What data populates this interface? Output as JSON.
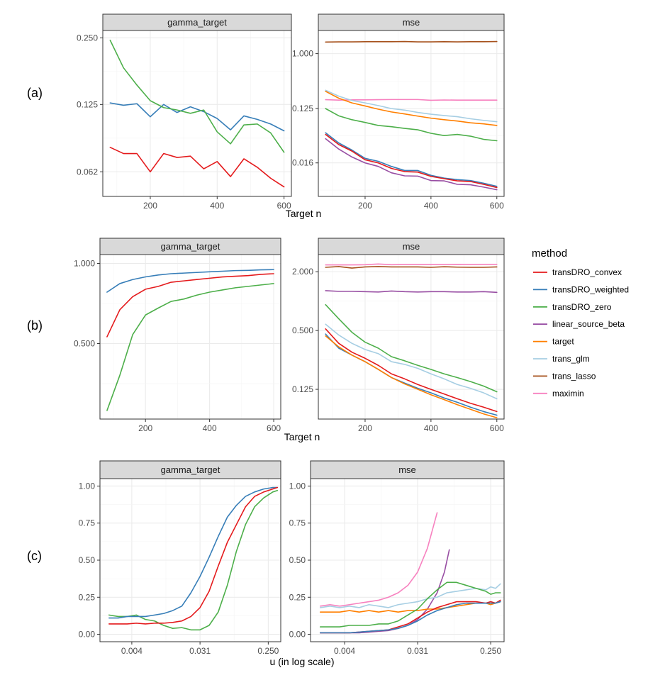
{
  "colors": {
    "transDRO_convex": "#e41a1c",
    "transDRO_weighted": "#377eb8",
    "transDRO_zero": "#4daf4a",
    "linear_source_beta": "#984ea3",
    "target": "#ff7f00",
    "trans_glm": "#a6cee3",
    "trans_lasso": "#a6511c",
    "maximin": "#f781bf"
  },
  "legend": {
    "title": "method",
    "items": [
      "transDRO_convex",
      "transDRO_weighted",
      "transDRO_zero",
      "linear_source_beta",
      "target",
      "trans_glm",
      "trans_lasso",
      "maximin"
    ]
  },
  "chart_data": [
    {
      "type": "line",
      "row_label": "(a)",
      "panel": "gamma_target",
      "y_scale": "log",
      "ylim": [
        0.048,
        0.27
      ],
      "yticks": [
        0.062,
        0.125,
        0.25
      ],
      "ytick_labels": [
        "0.062",
        "0.125",
        "0.250"
      ],
      "xlim": [
        58,
        622
      ],
      "xticks": [
        200,
        400,
        600
      ],
      "xlabel": "Target n",
      "x": [
        80,
        120,
        160,
        200,
        240,
        280,
        320,
        360,
        400,
        440,
        480,
        520,
        560,
        600
      ],
      "series": [
        {
          "name": "transDRO_convex",
          "values": [
            0.08,
            0.075,
            0.075,
            0.062,
            0.075,
            0.072,
            0.073,
            0.064,
            0.069,
            0.059,
            0.071,
            0.065,
            0.058,
            0.053
          ]
        },
        {
          "name": "transDRO_weighted",
          "values": [
            0.127,
            0.124,
            0.126,
            0.11,
            0.125,
            0.115,
            0.122,
            0.116,
            0.108,
            0.096,
            0.111,
            0.107,
            0.102,
            0.095
          ]
        },
        {
          "name": "transDRO_zero",
          "values": [
            0.244,
            0.183,
            0.153,
            0.13,
            0.121,
            0.118,
            0.114,
            0.118,
            0.094,
            0.083,
            0.101,
            0.102,
            0.093,
            0.076
          ]
        }
      ]
    },
    {
      "type": "line",
      "row_label": "",
      "panel": "mse",
      "y_scale": "log",
      "ylim": [
        0.0045,
        2.4
      ],
      "yticks": [
        0.016,
        0.125,
        1.0
      ],
      "ytick_labels": [
        "0.016",
        "0.125",
        "1.000"
      ],
      "xlim": [
        58,
        622
      ],
      "xticks": [
        200,
        400,
        600
      ],
      "xlabel": "",
      "x": [
        80,
        120,
        160,
        200,
        240,
        280,
        320,
        360,
        400,
        440,
        480,
        520,
        560,
        600
      ],
      "series": [
        {
          "name": "trans_lasso",
          "values": [
            1.55,
            1.56,
            1.56,
            1.57,
            1.57,
            1.57,
            1.58,
            1.56,
            1.56,
            1.57,
            1.56,
            1.57,
            1.57,
            1.58
          ]
        },
        {
          "name": "maximin",
          "values": [
            0.175,
            0.172,
            0.174,
            0.174,
            0.175,
            0.176,
            0.176,
            0.176,
            0.171,
            0.173,
            0.172,
            0.172,
            0.172,
            0.172
          ]
        },
        {
          "name": "trans_glm",
          "values": [
            0.25,
            0.2,
            0.17,
            0.155,
            0.14,
            0.125,
            0.118,
            0.108,
            0.101,
            0.096,
            0.092,
            0.085,
            0.08,
            0.076
          ]
        },
        {
          "name": "target",
          "values": [
            0.24,
            0.185,
            0.155,
            0.138,
            0.122,
            0.11,
            0.102,
            0.094,
            0.087,
            0.082,
            0.078,
            0.073,
            0.07,
            0.066
          ]
        },
        {
          "name": "transDRO_zero",
          "values": [
            0.125,
            0.095,
            0.082,
            0.074,
            0.066,
            0.063,
            0.059,
            0.056,
            0.049,
            0.045,
            0.047,
            0.044,
            0.039,
            0.037
          ]
        },
        {
          "name": "transDRO_weighted",
          "values": [
            0.05,
            0.034,
            0.026,
            0.019,
            0.017,
            0.014,
            0.012,
            0.012,
            0.01,
            0.009,
            0.0085,
            0.0082,
            0.0074,
            0.0066
          ]
        },
        {
          "name": "transDRO_convex",
          "values": [
            0.047,
            0.032,
            0.025,
            0.018,
            0.016,
            0.013,
            0.0115,
            0.0113,
            0.0096,
            0.0088,
            0.0081,
            0.0079,
            0.0071,
            0.0063
          ]
        },
        {
          "name": "linear_source_beta",
          "values": [
            0.04,
            0.027,
            0.02,
            0.016,
            0.014,
            0.011,
            0.0098,
            0.0097,
            0.0082,
            0.0081,
            0.0071,
            0.007,
            0.0064,
            0.0058
          ]
        }
      ]
    },
    {
      "type": "line",
      "row_label": "(b)",
      "panel": "gamma_target",
      "y_scale": "log",
      "ylim": [
        0.26,
        1.08
      ],
      "yticks": [
        0.5,
        1.0
      ],
      "ytick_labels": [
        "0.500",
        "1.000"
      ],
      "xlim": [
        58,
        622
      ],
      "xticks": [
        200,
        400,
        600
      ],
      "xlabel": "Target n",
      "x": [
        80,
        120,
        160,
        200,
        240,
        280,
        320,
        360,
        400,
        440,
        480,
        520,
        560,
        600
      ],
      "series": [
        {
          "name": "transDRO_weighted",
          "values": [
            0.78,
            0.84,
            0.87,
            0.89,
            0.905,
            0.915,
            0.92,
            0.925,
            0.93,
            0.935,
            0.94,
            0.942,
            0.946,
            0.948
          ]
        },
        {
          "name": "transDRO_convex",
          "values": [
            0.53,
            0.67,
            0.75,
            0.8,
            0.82,
            0.85,
            0.86,
            0.87,
            0.88,
            0.89,
            0.895,
            0.9,
            0.91,
            0.915
          ]
        },
        {
          "name": "transDRO_zero",
          "values": [
            0.28,
            0.38,
            0.54,
            0.64,
            0.68,
            0.72,
            0.735,
            0.76,
            0.78,
            0.795,
            0.81,
            0.82,
            0.83,
            0.84
          ]
        }
      ]
    },
    {
      "type": "line",
      "row_label": "",
      "panel": "mse",
      "y_scale": "log",
      "ylim": [
        0.062,
        3.0
      ],
      "yticks": [
        0.125,
        0.5,
        2.0
      ],
      "ytick_labels": [
        "0.125",
        "0.500",
        "2.000"
      ],
      "xlim": [
        58,
        622
      ],
      "xticks": [
        200,
        400,
        600
      ],
      "xlabel": "",
      "x": [
        80,
        120,
        160,
        200,
        240,
        280,
        320,
        360,
        400,
        440,
        480,
        520,
        560,
        600
      ],
      "series": [
        {
          "name": "maximin",
          "values": [
            2.35,
            2.35,
            2.35,
            2.36,
            2.4,
            2.36,
            2.37,
            2.37,
            2.37,
            2.37,
            2.38,
            2.37,
            2.38,
            2.38
          ]
        },
        {
          "name": "trans_lasso",
          "values": [
            2.22,
            2.26,
            2.18,
            2.24,
            2.26,
            2.24,
            2.24,
            2.24,
            2.22,
            2.25,
            2.23,
            2.22,
            2.22,
            2.24
          ]
        },
        {
          "name": "linear_source_beta",
          "values": [
            1.28,
            1.26,
            1.26,
            1.25,
            1.24,
            1.27,
            1.25,
            1.24,
            1.25,
            1.25,
            1.24,
            1.24,
            1.25,
            1.23
          ]
        },
        {
          "name": "transDRO_zero",
          "values": [
            0.92,
            0.66,
            0.48,
            0.38,
            0.33,
            0.27,
            0.245,
            0.22,
            0.2,
            0.18,
            0.165,
            0.15,
            0.135,
            0.118
          ]
        },
        {
          "name": "trans_glm",
          "values": [
            0.58,
            0.45,
            0.37,
            0.32,
            0.29,
            0.24,
            0.225,
            0.205,
            0.18,
            0.16,
            0.14,
            0.128,
            0.115,
            0.1
          ]
        },
        {
          "name": "transDRO_convex",
          "values": [
            0.52,
            0.37,
            0.3,
            0.26,
            0.22,
            0.18,
            0.16,
            0.14,
            0.125,
            0.112,
            0.1,
            0.09,
            0.082,
            0.074
          ]
        },
        {
          "name": "transDRO_weighted",
          "values": [
            0.46,
            0.33,
            0.28,
            0.24,
            0.2,
            0.165,
            0.145,
            0.128,
            0.115,
            0.102,
            0.092,
            0.082,
            0.074,
            0.068
          ]
        },
        {
          "name": "target",
          "values": [
            0.44,
            0.34,
            0.28,
            0.24,
            0.2,
            0.165,
            0.142,
            0.125,
            0.11,
            0.098,
            0.087,
            0.078,
            0.07,
            0.064
          ]
        }
      ]
    },
    {
      "type": "line",
      "row_label": "(c)",
      "panel": "gamma_target",
      "x_scale": "log",
      "xlim_log2": [
        -9.4,
        -1.45
      ],
      "xtick_log2": [
        -8,
        -5,
        -2
      ],
      "xtick_labels": [
        "0.004",
        "0.031",
        "0.250"
      ],
      "ylim": [
        -0.05,
        1.05
      ],
      "yticks": [
        0.0,
        0.25,
        0.5,
        0.75,
        1.0
      ],
      "ytick_labels": [
        "0.00",
        "0.25",
        "0.50",
        "0.75",
        "1.00"
      ],
      "xlabel": "u (in log scale)",
      "x_log2": [
        -9.0,
        -8.6,
        -8.2,
        -7.8,
        -7.4,
        -7.0,
        -6.6,
        -6.2,
        -5.8,
        -5.4,
        -5.0,
        -4.6,
        -4.2,
        -3.8,
        -3.4,
        -3.0,
        -2.6,
        -2.2,
        -1.8,
        -1.6
      ],
      "series": [
        {
          "name": "transDRO_zero",
          "values": [
            0.13,
            0.12,
            0.12,
            0.13,
            0.1,
            0.09,
            0.06,
            0.04,
            0.045,
            0.03,
            0.03,
            0.06,
            0.15,
            0.33,
            0.56,
            0.74,
            0.86,
            0.92,
            0.96,
            0.97
          ]
        },
        {
          "name": "transDRO_weighted",
          "values": [
            0.11,
            0.11,
            0.12,
            0.12,
            0.12,
            0.13,
            0.14,
            0.16,
            0.19,
            0.28,
            0.39,
            0.52,
            0.66,
            0.79,
            0.87,
            0.93,
            0.96,
            0.98,
            0.99,
            0.99
          ]
        },
        {
          "name": "transDRO_convex",
          "values": [
            0.07,
            0.07,
            0.07,
            0.075,
            0.07,
            0.075,
            0.075,
            0.08,
            0.09,
            0.12,
            0.18,
            0.29,
            0.46,
            0.62,
            0.74,
            0.86,
            0.93,
            0.96,
            0.98,
            0.99
          ]
        }
      ]
    },
    {
      "type": "line",
      "row_label": "",
      "panel": "mse",
      "x_scale": "log",
      "xlim_log2": [
        -9.4,
        -1.45
      ],
      "xtick_log2": [
        -8,
        -5,
        -2
      ],
      "xtick_labels": [
        "0.004",
        "0.031",
        "0.250"
      ],
      "ylim": [
        -0.05,
        1.05
      ],
      "yticks": [
        0.0,
        0.25,
        0.5,
        0.75,
        1.0
      ],
      "ytick_labels": [
        "0.00",
        "0.25",
        "0.50",
        "0.75",
        "1.00"
      ],
      "xlabel": "",
      "series": [
        {
          "name": "maximin",
          "x_log2": [
            -9.0,
            -8.6,
            -8.2,
            -7.8,
            -7.4,
            -7.0,
            -6.6,
            -6.2,
            -5.8,
            -5.4,
            -5.0,
            -4.8,
            -4.6,
            -4.4,
            -4.2
          ],
          "values": [
            0.19,
            0.2,
            0.19,
            0.2,
            0.21,
            0.22,
            0.23,
            0.25,
            0.28,
            0.33,
            0.42,
            0.5,
            0.58,
            0.7,
            0.82
          ]
        },
        {
          "name": "linear_source_beta",
          "x_log2": [
            -9.0,
            -8.6,
            -8.2,
            -7.8,
            -7.4,
            -7.0,
            -6.6,
            -6.2,
            -5.8,
            -5.4,
            -5.0,
            -4.6,
            -4.2,
            -3.9,
            -3.7
          ],
          "values": [
            0.01,
            0.01,
            0.01,
            0.01,
            0.01,
            0.015,
            0.02,
            0.025,
            0.04,
            0.06,
            0.1,
            0.17,
            0.28,
            0.42,
            0.57
          ]
        },
        {
          "name": "trans_glm",
          "x_log2": [
            -9.0,
            -8.6,
            -8.2,
            -7.8,
            -7.4,
            -7.0,
            -6.6,
            -6.2,
            -5.8,
            -5.4,
            -5.0,
            -4.6,
            -4.2,
            -3.8,
            -3.4,
            -3.0,
            -2.6,
            -2.2,
            -2.0,
            -1.8,
            -1.6
          ],
          "values": [
            0.18,
            0.19,
            0.18,
            0.19,
            0.18,
            0.2,
            0.19,
            0.18,
            0.2,
            0.21,
            0.22,
            0.24,
            0.25,
            0.28,
            0.29,
            0.3,
            0.31,
            0.3,
            0.32,
            0.31,
            0.34
          ]
        },
        {
          "name": "target",
          "x_log2": [
            -9.0,
            -8.6,
            -8.2,
            -7.8,
            -7.4,
            -7.0,
            -6.6,
            -6.2,
            -5.8,
            -5.4,
            -5.0,
            -4.6,
            -4.2,
            -3.8,
            -3.4,
            -3.0,
            -2.6,
            -2.2,
            -2.0,
            -1.8,
            -1.6
          ],
          "values": [
            0.15,
            0.15,
            0.15,
            0.16,
            0.15,
            0.16,
            0.15,
            0.16,
            0.15,
            0.16,
            0.16,
            0.17,
            0.17,
            0.18,
            0.19,
            0.2,
            0.21,
            0.21,
            0.2,
            0.21,
            0.22
          ]
        },
        {
          "name": "transDRO_zero",
          "x_log2": [
            -9.0,
            -8.6,
            -8.2,
            -7.8,
            -7.4,
            -7.0,
            -6.6,
            -6.2,
            -5.8,
            -5.4,
            -5.0,
            -4.6,
            -4.2,
            -3.8,
            -3.4,
            -3.0,
            -2.6,
            -2.2,
            -2.0,
            -1.8,
            -1.6
          ],
          "values": [
            0.05,
            0.05,
            0.05,
            0.06,
            0.06,
            0.06,
            0.07,
            0.07,
            0.09,
            0.13,
            0.17,
            0.24,
            0.3,
            0.35,
            0.35,
            0.33,
            0.31,
            0.29,
            0.27,
            0.28,
            0.28
          ]
        },
        {
          "name": "transDRO_convex",
          "x_log2": [
            -9.0,
            -8.6,
            -8.2,
            -7.8,
            -7.4,
            -7.0,
            -6.6,
            -6.2,
            -5.8,
            -5.4,
            -5.0,
            -4.6,
            -4.2,
            -3.8,
            -3.4,
            -3.0,
            -2.6,
            -2.2,
            -2.0,
            -1.8,
            -1.6
          ],
          "values": [
            0.01,
            0.01,
            0.01,
            0.01,
            0.015,
            0.02,
            0.025,
            0.03,
            0.05,
            0.07,
            0.11,
            0.15,
            0.18,
            0.2,
            0.22,
            0.22,
            0.22,
            0.21,
            0.22,
            0.21,
            0.23
          ]
        },
        {
          "name": "transDRO_weighted",
          "x_log2": [
            -9.0,
            -8.6,
            -8.2,
            -7.8,
            -7.4,
            -7.0,
            -6.6,
            -6.2,
            -5.8,
            -5.4,
            -5.0,
            -4.6,
            -4.2,
            -3.8,
            -3.4,
            -3.0,
            -2.6,
            -2.2,
            -2.0,
            -1.8,
            -1.6
          ],
          "values": [
            0.01,
            0.01,
            0.01,
            0.01,
            0.015,
            0.02,
            0.025,
            0.03,
            0.04,
            0.06,
            0.09,
            0.13,
            0.16,
            0.18,
            0.2,
            0.21,
            0.21,
            0.21,
            0.21,
            0.21,
            0.22
          ]
        }
      ]
    }
  ]
}
